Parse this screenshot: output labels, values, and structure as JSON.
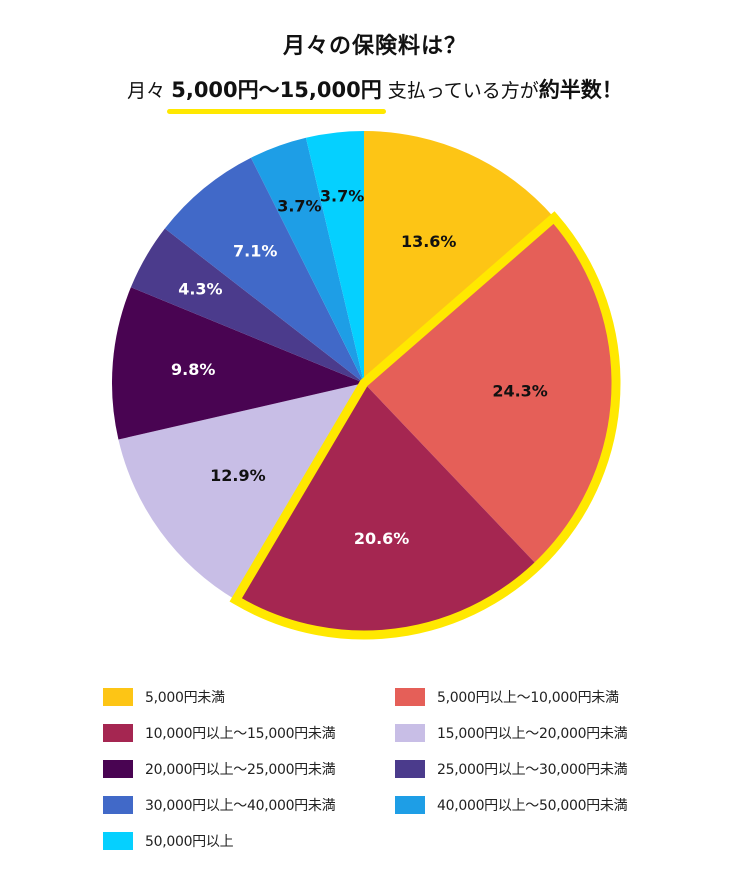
{
  "header": {
    "title": "月々の保険料は？",
    "sub_prefix": "月々",
    "sub_highlight": "5,000円〜15,000円",
    "sub_middle": "支払っている方が",
    "sub_emphasis": "約半数！"
  },
  "chart_data": {
    "type": "pie",
    "start_angle": 0,
    "direction": "clockwise",
    "slices": [
      {
        "name": "5,000円未満",
        "value": 13.6,
        "label": "13.6%",
        "color": "#fdc515",
        "label_color": "#111111"
      },
      {
        "name": "5,000円以上〜10,000円未満",
        "value": 24.3,
        "label": "24.3%",
        "color": "#e55f58",
        "label_color": "#111111",
        "highlighted": true
      },
      {
        "name": "10,000円以上〜15,000円未満",
        "value": 20.6,
        "label": "20.6%",
        "color": "#a52651",
        "label_color": "#ffffff",
        "highlighted": true
      },
      {
        "name": "15,000円以上〜20,000円未満",
        "value": 12.9,
        "label": "12.9%",
        "color": "#c8bee6",
        "label_color": "#111111"
      },
      {
        "name": "20,000円以上〜25,000円未満",
        "value": 9.8,
        "label": "9.8%",
        "color": "#490452",
        "label_color": "#ffffff"
      },
      {
        "name": "25,000円以上〜30,000円未満",
        "value": 4.3,
        "label": "4.3%",
        "color": "#4b3b8c",
        "label_color": "#ffffff"
      },
      {
        "name": "30,000円以上〜40,000円未満",
        "value": 7.1,
        "label": "7.1%",
        "color": "#4169c8",
        "label_color": "#ffffff"
      },
      {
        "name": "40,000円以上〜50,000円未満",
        "value": 3.7,
        "label": "3.7%",
        "color": "#1e9ee6",
        "label_color": "#111111"
      },
      {
        "name": "50,000円以上",
        "value": 3.7,
        "label": "3.7%",
        "color": "#05d0ff",
        "label_color": "#111111"
      }
    ],
    "highlight_color": "#ffe800",
    "legend_position": "bottom"
  }
}
